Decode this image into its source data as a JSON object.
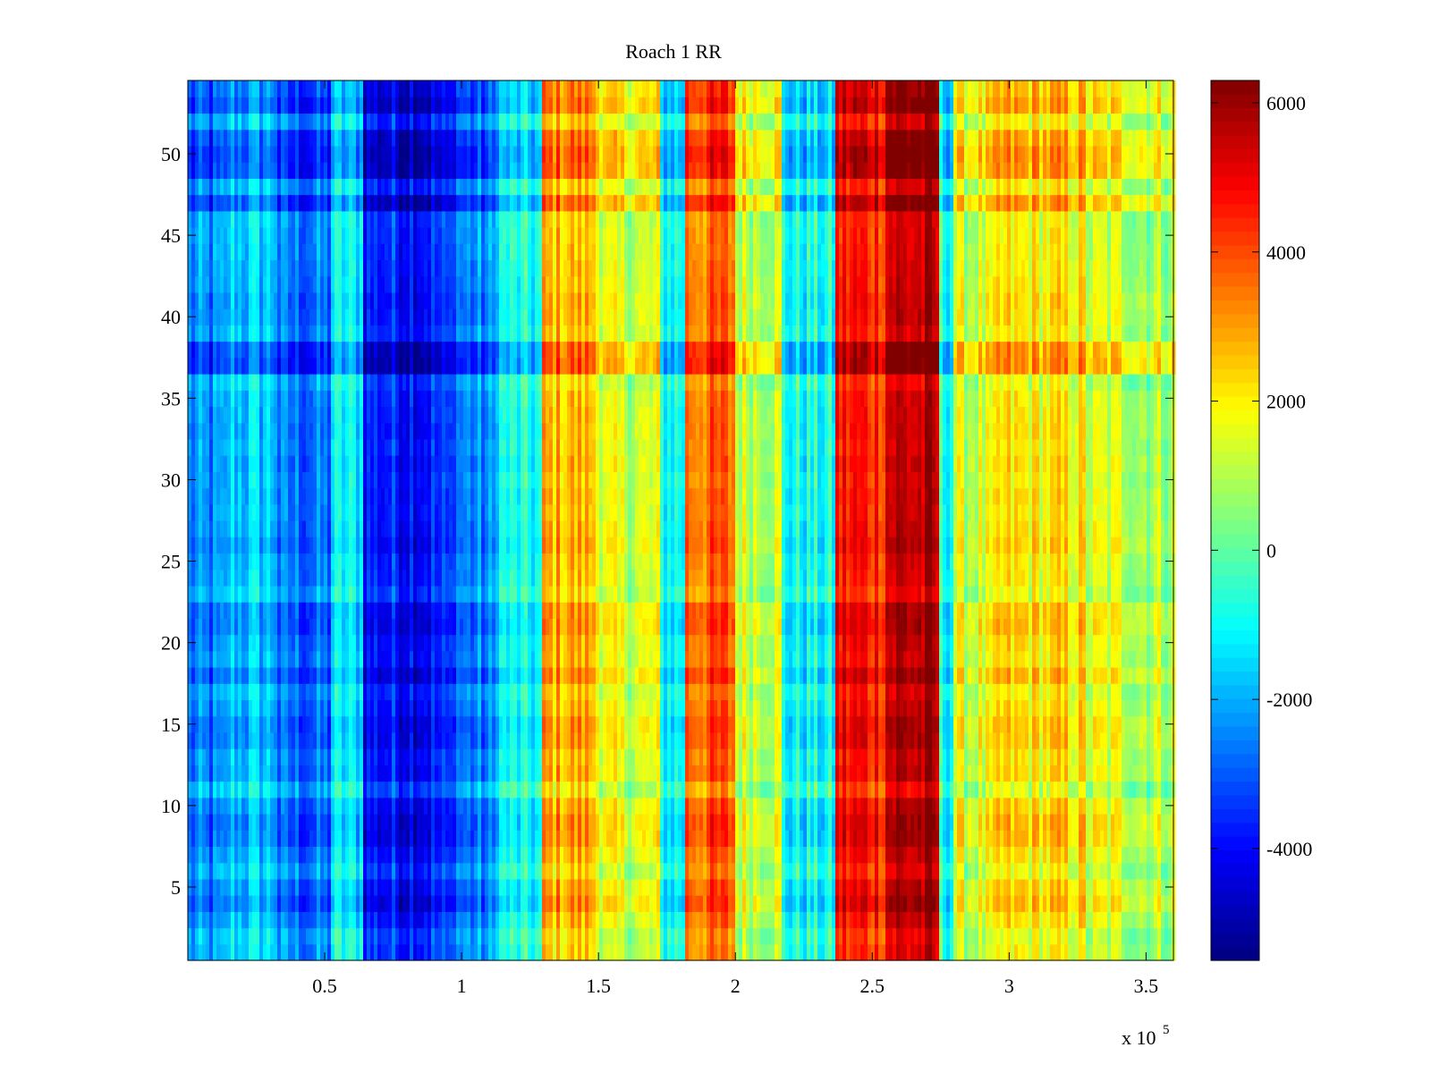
{
  "chart_data": {
    "type": "heatmap",
    "title": "Roach 1 RR",
    "xlabel": "",
    "ylabel": "",
    "x_multiplier_label": "x 10",
    "x_multiplier_exponent": "5",
    "xlim": [
      0.5,
      360000
    ],
    "ylim": [
      0.5,
      54.5
    ],
    "x_ticks": [
      50000,
      100000,
      150000,
      200000,
      250000,
      300000,
      350000
    ],
    "x_tick_labels": [
      "0.5",
      "1",
      "1.5",
      "2",
      "2.5",
      "3",
      "3.5"
    ],
    "y_ticks": [
      5,
      10,
      15,
      20,
      25,
      30,
      35,
      40,
      45,
      50
    ],
    "y_tick_labels": [
      "5",
      "10",
      "15",
      "20",
      "25",
      "30",
      "35",
      "40",
      "45",
      "50"
    ],
    "colorbar": {
      "colormap": "jet",
      "clim": [
        -5500,
        6300
      ],
      "ticks": [
        -4000,
        -2000,
        0,
        2000,
        4000,
        6000
      ],
      "tick_labels": [
        "-4000",
        "-2000",
        "0",
        "2000",
        "4000",
        "6000"
      ]
    },
    "rows": 54,
    "column_bands_x": [
      [
        0,
        15000
      ],
      [
        15000,
        33000
      ],
      [
        33000,
        52000
      ],
      [
        52000,
        64000
      ],
      [
        64000,
        97000
      ],
      [
        97000,
        113000
      ],
      [
        113000,
        130000
      ],
      [
        130000,
        150000
      ],
      [
        150000,
        172000
      ],
      [
        172000,
        181000
      ],
      [
        181000,
        200000
      ],
      [
        200000,
        217000
      ],
      [
        217000,
        237000
      ],
      [
        237000,
        255000
      ],
      [
        255000,
        274000
      ],
      [
        274000,
        280000
      ],
      [
        280000,
        295000
      ],
      [
        295000,
        328000
      ],
      [
        328000,
        345000
      ],
      [
        345000,
        360000
      ]
    ],
    "column_band_base_values": [
      -2300,
      -1400,
      -2500,
      -1000,
      -3400,
      -2300,
      -700,
      2400,
      1000,
      -600,
      3300,
      1000,
      -700,
      4300,
      5200,
      -400,
      1000,
      1700,
      1000,
      700
    ],
    "row_offsets": [
      0,
      -300,
      500,
      1400,
      900,
      -100,
      600,
      1300,
      1400,
      900,
      -500,
      700,
      500,
      1100,
      1200,
      600,
      200,
      1400,
      500,
      700,
      1300,
      1200,
      -200,
      300,
      400,
      900,
      600,
      400,
      500,
      300,
      600,
      300,
      500,
      400,
      300,
      -300,
      2400,
      2200,
      200,
      600,
      700,
      400,
      300,
      200,
      100,
      0,
      2100,
      200,
      2200,
      2300,
      1900,
      200,
      2000,
      1500
    ]
  }
}
